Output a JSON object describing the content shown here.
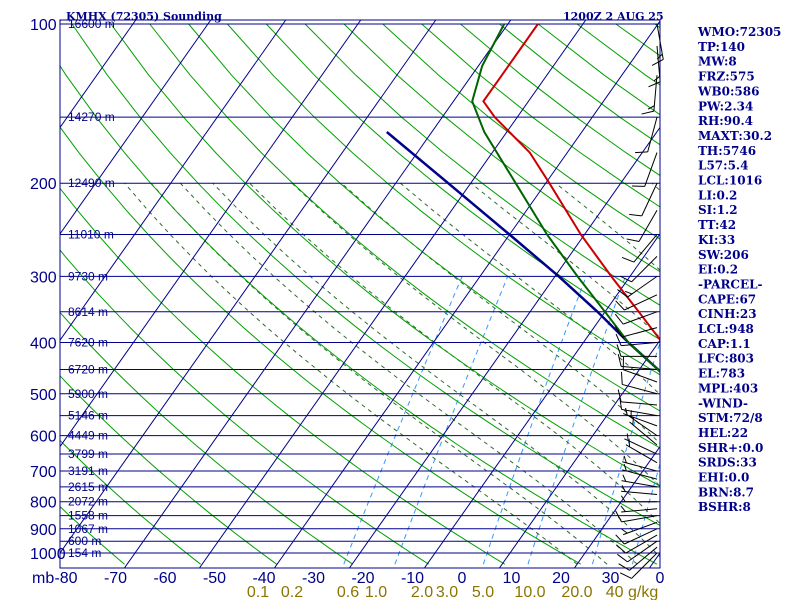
{
  "header": {
    "station": "KMHX (72305) Sounding",
    "time": "1200Z  2 AUG 25"
  },
  "stats": [
    "WMO:72305",
    "TP:140",
    "MW:8",
    "FRZ:575",
    "WB0:586",
    "PW:2.34",
    "RH:90.4",
    "MAXT:30.2",
    "TH:5746",
    "L57:5.4",
    "LCL:1016",
    "LI:0.2",
    "SI:1.2",
    "TT:42",
    "KI:33",
    "SW:206",
    "EI:0.2",
    "-PARCEL-",
    "CAPE:67",
    "CINH:23",
    "LCL:948",
    "CAP:1.1",
    "LFC:803",
    "EL:783",
    "MPL:403",
    "-WIND-",
    "STM:72/8",
    "HEL:22",
    "SHR+:0.0",
    "SRDS:33",
    "EHI:0.0",
    "BRN:8.7",
    "BSHR:8"
  ],
  "colors": {
    "grid": "#00008b",
    "dry_adiabat": "#00a000",
    "moist_adiabat": "#2e6b2e",
    "mixing_ratio": "#3399ff",
    "temperature": "#cc0000",
    "dewpoint": "#006400",
    "parcel": "#00008b",
    "mixing_label": "#8b7500"
  },
  "chart_data": {
    "type": "line",
    "title": "KMHX (72305) Sounding",
    "xlabel": "",
    "ylabel": "mb",
    "xlim": [
      -80,
      0
    ],
    "ylim": [
      1000,
      100
    ],
    "y_scale": "log",
    "pressure_ticks": [
      100,
      200,
      300,
      400,
      500,
      600,
      700,
      800,
      900,
      1000
    ],
    "extra_pressure_lines": [
      150,
      250,
      350,
      450,
      550,
      650,
      750,
      850,
      950
    ],
    "temperature_ticks": [
      "-80",
      "-70",
      "-60",
      "-50",
      "-40",
      "-30",
      "-20",
      "-10",
      "0",
      "10",
      "20",
      "30",
      "0"
    ],
    "mixing_ratio_labels": [
      "0.1",
      "0.2",
      "0.6",
      "1.0",
      "2.0",
      "3.0",
      "5.0",
      "10.0",
      "20.0",
      "40 g/kg"
    ],
    "height_labels": [
      {
        "p": 100,
        "text": "16600 m"
      },
      {
        "p": 150,
        "text": "14270 m"
      },
      {
        "p": 200,
        "text": "12490 m"
      },
      {
        "p": 250,
        "text": "11010 m"
      },
      {
        "p": 300,
        "text": "9730 m"
      },
      {
        "p": 350,
        "text": "8614 m"
      },
      {
        "p": 400,
        "text": "7620 m"
      },
      {
        "p": 450,
        "text": "6720 m"
      },
      {
        "p": 500,
        "text": "5900 m"
      },
      {
        "p": 550,
        "text": "5146 m"
      },
      {
        "p": 600,
        "text": "4449 m"
      },
      {
        "p": 650,
        "text": "3799 m"
      },
      {
        "p": 700,
        "text": "3191 m"
      },
      {
        "p": 750,
        "text": "2615 m"
      },
      {
        "p": 800,
        "text": "2072 m"
      },
      {
        "p": 850,
        "text": "1558 m"
      },
      {
        "p": 900,
        "text": "1067 m"
      },
      {
        "p": 950,
        "text": "600 m"
      },
      {
        "p": 1000,
        "text": "154 m"
      }
    ],
    "series": [
      {
        "id": "temperature",
        "points": [
          {
            "p": 1008,
            "t": 24.5
          },
          {
            "p": 1000,
            "t": 23
          },
          {
            "p": 950,
            "t": 19
          },
          {
            "p": 900,
            "t": 15.5
          },
          {
            "p": 850,
            "t": 13
          },
          {
            "p": 800,
            "t": 11
          },
          {
            "p": 750,
            "t": 9.5
          },
          {
            "p": 700,
            "t": 6.5
          },
          {
            "p": 650,
            "t": 2
          },
          {
            "p": 600,
            "t": -2.5
          },
          {
            "p": 550,
            "t": -6.5
          },
          {
            "p": 500,
            "t": -10.5
          },
          {
            "p": 450,
            "t": -15
          },
          {
            "p": 400,
            "t": -19.5
          },
          {
            "p": 350,
            "t": -25.5
          },
          {
            "p": 300,
            "t": -32.5
          },
          {
            "p": 250,
            "t": -40.5
          },
          {
            "p": 200,
            "t": -49.5
          },
          {
            "p": 175,
            "t": -55
          },
          {
            "p": 150,
            "t": -63
          },
          {
            "p": 140,
            "t": -66
          },
          {
            "p": 125,
            "t": -66
          },
          {
            "p": 100,
            "t": -66
          }
        ]
      },
      {
        "id": "dewpoint",
        "points": [
          {
            "p": 1008,
            "t": 22.5
          },
          {
            "p": 1000,
            "t": 22
          },
          {
            "p": 950,
            "t": 18.5
          },
          {
            "p": 900,
            "t": 15
          },
          {
            "p": 850,
            "t": 12
          },
          {
            "p": 800,
            "t": 8.5
          },
          {
            "p": 750,
            "t": 5
          },
          {
            "p": 700,
            "t": 2
          },
          {
            "p": 650,
            "t": -1
          },
          {
            "p": 600,
            "t": -4.5
          },
          {
            "p": 550,
            "t": -7.5
          },
          {
            "p": 500,
            "t": -12
          },
          {
            "p": 450,
            "t": -17.5
          },
          {
            "p": 400,
            "t": -24
          },
          {
            "p": 350,
            "t": -30
          },
          {
            "p": 300,
            "t": -37
          },
          {
            "p": 250,
            "t": -45
          },
          {
            "p": 200,
            "t": -54
          },
          {
            "p": 160,
            "t": -63
          },
          {
            "p": 140,
            "t": -67.5
          },
          {
            "p": 120,
            "t": -69.5
          },
          {
            "p": 100,
            "t": -70.5
          }
        ]
      },
      {
        "id": "parcel",
        "points": [
          {
            "p": 1008,
            "t": 26
          },
          {
            "p": 1000,
            "t": 25
          },
          {
            "p": 950,
            "t": 20.5
          },
          {
            "p": 900,
            "t": 17
          },
          {
            "p": 850,
            "t": 14
          },
          {
            "p": 800,
            "t": 11
          },
          {
            "p": 750,
            "t": 8
          },
          {
            "p": 700,
            "t": 4.5
          },
          {
            "p": 650,
            "t": 1
          },
          {
            "p": 600,
            "t": -3
          },
          {
            "p": 550,
            "t": -7
          },
          {
            "p": 500,
            "t": -12
          },
          {
            "p": 450,
            "t": -17.5
          },
          {
            "p": 400,
            "t": -24
          },
          {
            "p": 350,
            "t": -31
          },
          {
            "p": 300,
            "t": -39.5
          },
          {
            "p": 250,
            "t": -50
          },
          {
            "p": 200,
            "t": -63
          },
          {
            "p": 160,
            "t": -76
          }
        ]
      }
    ]
  },
  "wind_barbs": [
    {
      "p": 1000,
      "dir": 225,
      "kt": 10
    },
    {
      "p": 975,
      "dir": 230,
      "kt": 10
    },
    {
      "p": 950,
      "dir": 235,
      "kt": 10
    },
    {
      "p": 925,
      "dir": 240,
      "kt": 10
    },
    {
      "p": 900,
      "dir": 245,
      "kt": 10
    },
    {
      "p": 875,
      "dir": 250,
      "kt": 5
    },
    {
      "p": 850,
      "dir": 260,
      "kt": 10
    },
    {
      "p": 825,
      "dir": 265,
      "kt": 5
    },
    {
      "p": 800,
      "dir": 270,
      "kt": 5
    },
    {
      "p": 775,
      "dir": 275,
      "kt": 5
    },
    {
      "p": 750,
      "dir": 280,
      "kt": 5
    },
    {
      "p": 725,
      "dir": 285,
      "kt": 5
    },
    {
      "p": 700,
      "dir": 285,
      "kt": 5
    },
    {
      "p": 675,
      "dir": 300,
      "kt": 5
    },
    {
      "p": 650,
      "dir": 295,
      "kt": 5
    },
    {
      "p": 625,
      "dir": 310,
      "kt": 5
    },
    {
      "p": 600,
      "dir": 305,
      "kt": 5
    },
    {
      "p": 575,
      "dir": 290,
      "kt": 5
    },
    {
      "p": 550,
      "dir": 280,
      "kt": 10
    },
    {
      "p": 525,
      "dir": 275,
      "kt": 10
    },
    {
      "p": 500,
      "dir": 285,
      "kt": 10
    },
    {
      "p": 475,
      "dir": 290,
      "kt": 10
    },
    {
      "p": 450,
      "dir": 275,
      "kt": 10
    },
    {
      "p": 425,
      "dir": 270,
      "kt": 10
    },
    {
      "p": 400,
      "dir": 265,
      "kt": 10
    },
    {
      "p": 375,
      "dir": 255,
      "kt": 10
    },
    {
      "p": 350,
      "dir": 250,
      "kt": 10
    },
    {
      "p": 325,
      "dir": 245,
      "kt": 10
    },
    {
      "p": 300,
      "dir": 235,
      "kt": 15
    },
    {
      "p": 275,
      "dir": 225,
      "kt": 10
    },
    {
      "p": 250,
      "dir": 220,
      "kt": 10
    },
    {
      "p": 225,
      "dir": 210,
      "kt": 10
    },
    {
      "p": 200,
      "dir": 205,
      "kt": 10
    },
    {
      "p": 175,
      "dir": 200,
      "kt": 10
    },
    {
      "p": 150,
      "dir": 195,
      "kt": 10
    },
    {
      "p": 125,
      "dir": 185,
      "kt": 15
    },
    {
      "p": 110,
      "dir": 175,
      "kt": 15
    },
    {
      "p": 100,
      "dir": 170,
      "kt": 15
    }
  ]
}
